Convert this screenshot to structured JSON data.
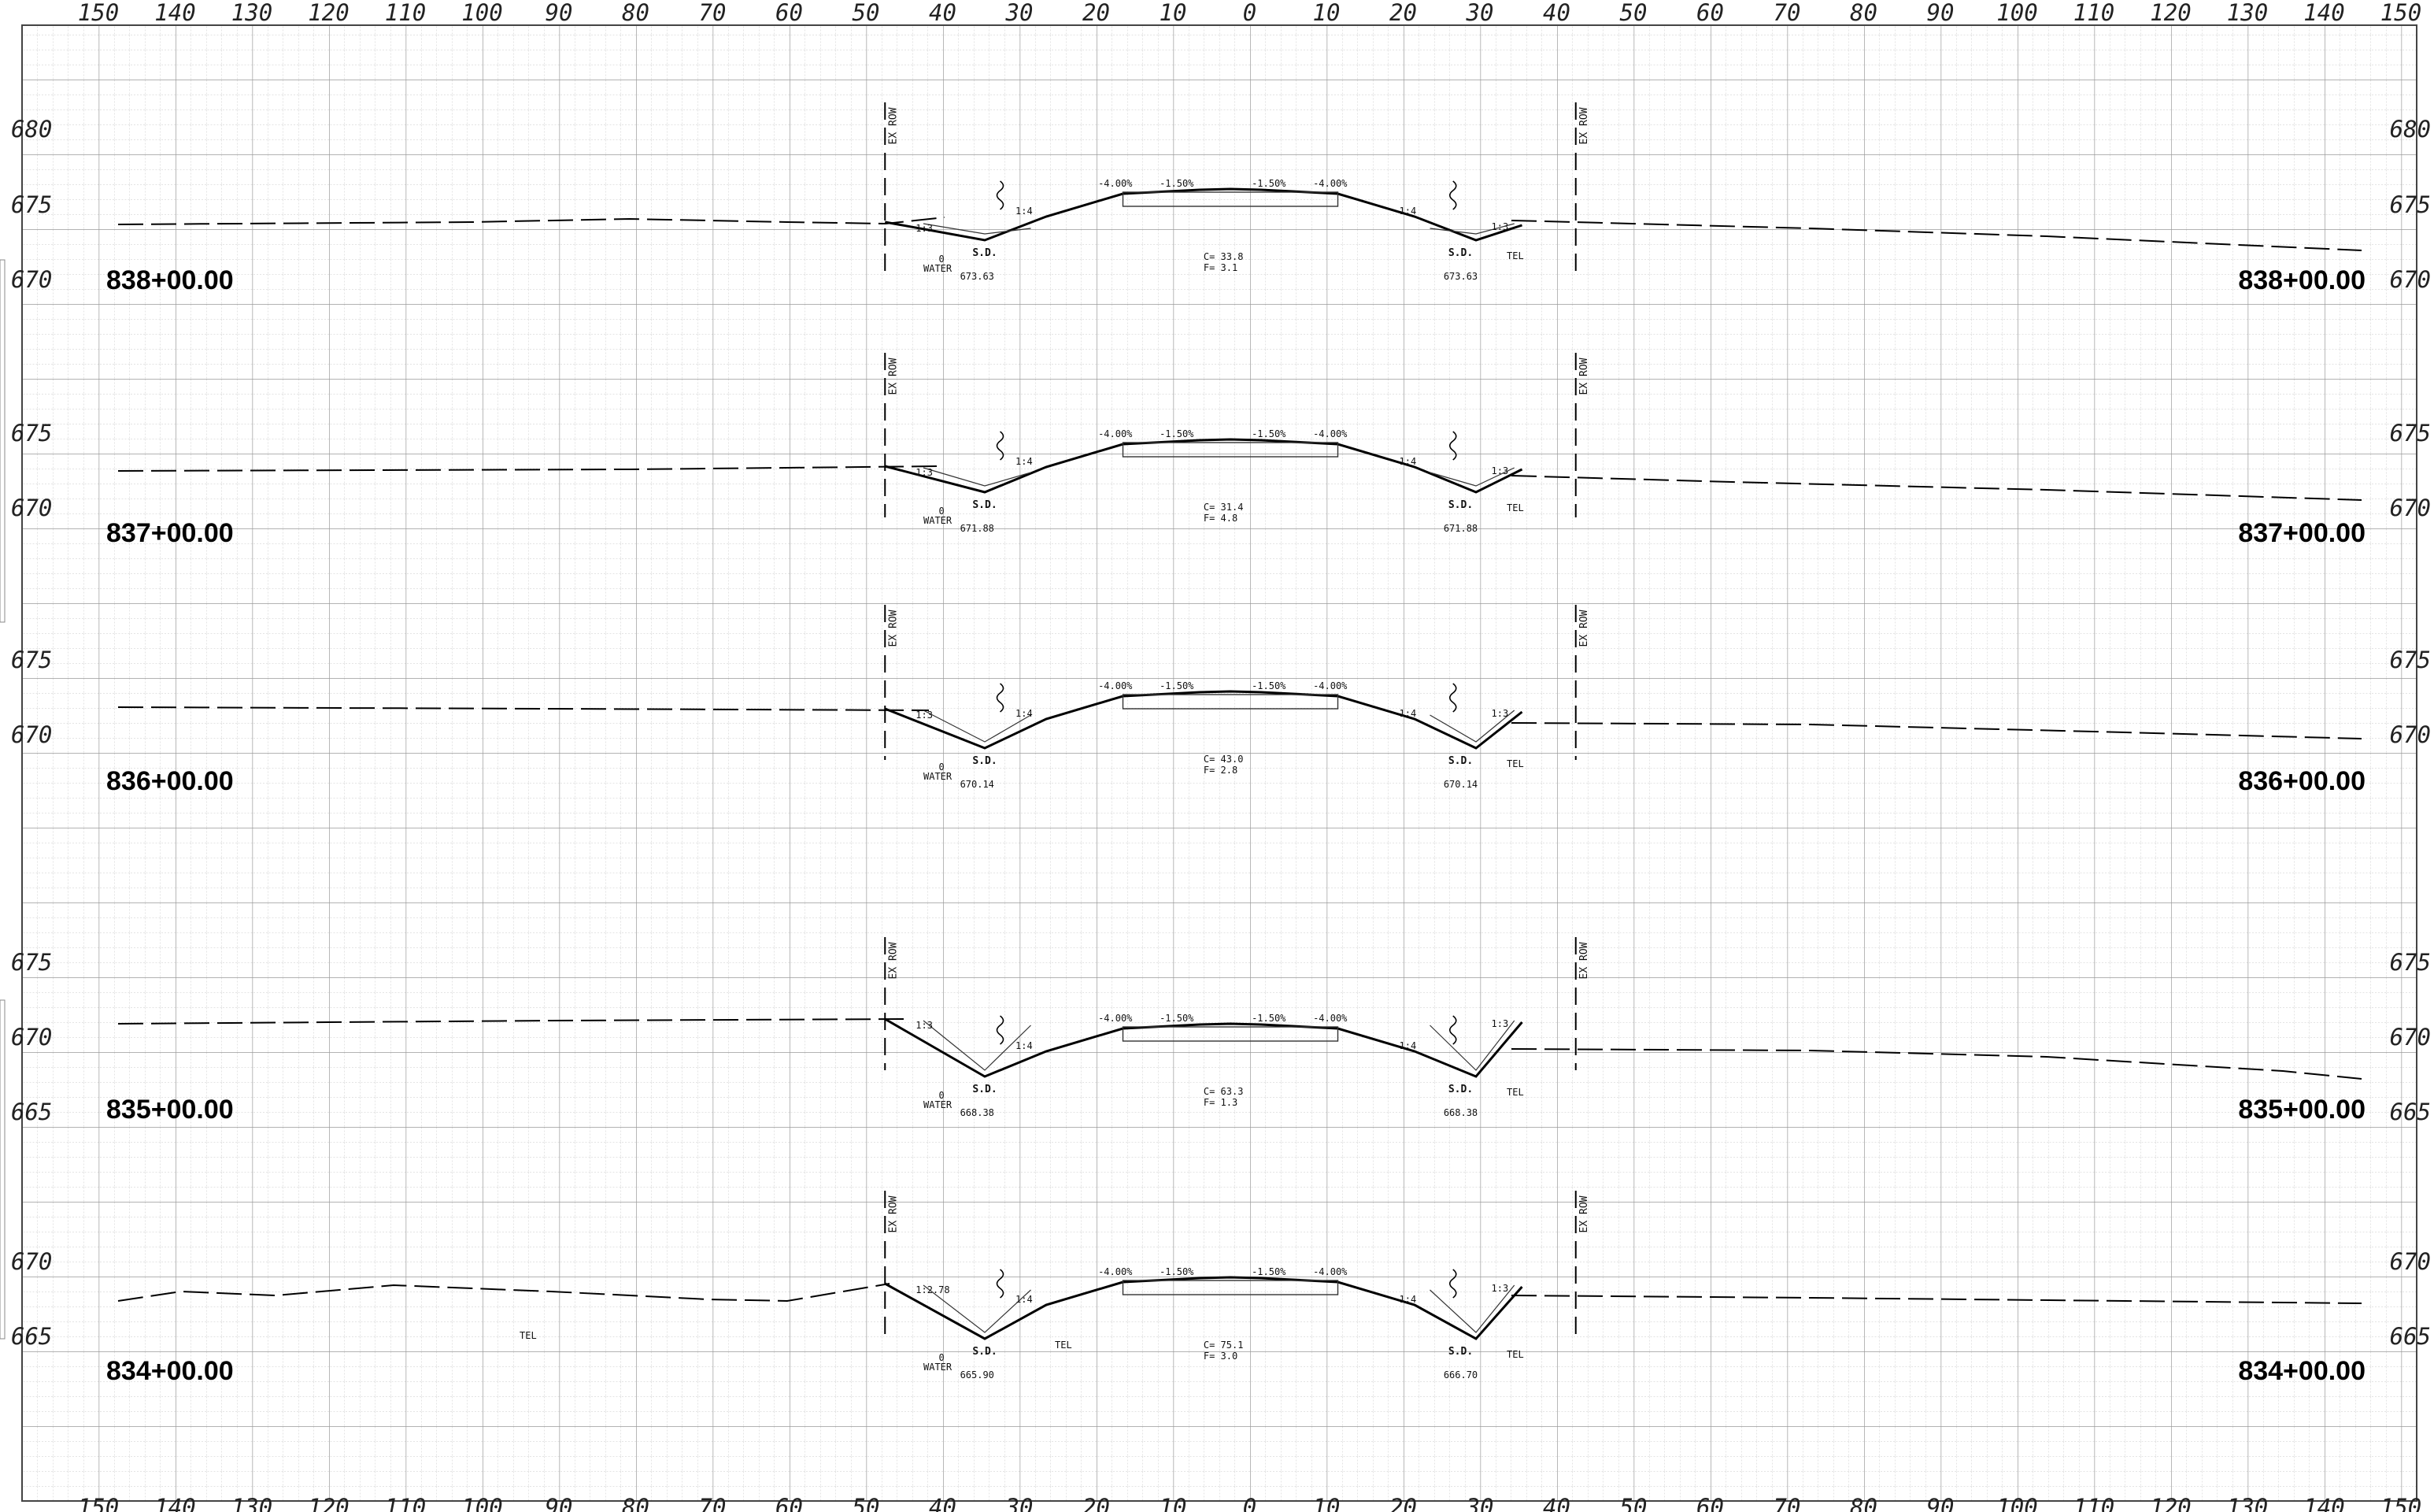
{
  "axis": {
    "offsets_top": [
      "150",
      "140",
      "130",
      "120",
      "110",
      "100",
      "90",
      "80",
      "70",
      "60",
      "50",
      "40",
      "30",
      "20",
      "10",
      "0",
      "10",
      "20",
      "30",
      "40",
      "50",
      "60",
      "70",
      "80",
      "90",
      "100",
      "110",
      "120",
      "130",
      "140",
      "150"
    ],
    "offsets_bottom": [
      "150",
      "140",
      "130",
      "120",
      "110",
      "100",
      "90",
      "80",
      "70",
      "60",
      "50",
      "40",
      "30",
      "20",
      "10",
      "0",
      "10",
      "20",
      "30",
      "40",
      "50",
      "60",
      "70",
      "80",
      "90",
      "100",
      "110",
      "120",
      "130",
      "140",
      "150"
    ]
  },
  "labels": {
    "row": "EX ROW",
    "ditch": "S.D.",
    "tel": "TEL",
    "water": "WATER",
    "water_zero": "0",
    "slope_out": "1:3",
    "slope_in": "1:4",
    "grades": [
      "-4.00%",
      "-1.50%",
      "-1.50%",
      "-4.00%"
    ]
  },
  "sections": [
    {
      "station": "838+00.00",
      "elev": [
        "680",
        "675",
        "670"
      ],
      "elev_right": [
        "680",
        "675",
        "670"
      ],
      "cut": "C= 33.8",
      "fill": "F= 3.1",
      "flow_left": "673.63",
      "flow_right": "673.63"
    },
    {
      "station": "837+00.00",
      "elev": [
        "675",
        "670"
      ],
      "elev_right": [
        "675",
        "670"
      ],
      "cut": "C= 31.4",
      "fill": "F= 4.8",
      "flow_left": "671.88",
      "flow_right": "671.88"
    },
    {
      "station": "836+00.00",
      "elev": [
        "675",
        "670"
      ],
      "elev_right": [
        "675",
        "670"
      ],
      "cut": "C= 43.0",
      "fill": "F= 2.8",
      "flow_left": "670.14",
      "flow_right": "670.14"
    },
    {
      "station": "835+00.00",
      "elev": [
        "675",
        "670",
        "665"
      ],
      "elev_right": [
        "675",
        "670",
        "665"
      ],
      "cut": "C= 63.3",
      "fill": "F= 1.3",
      "flow_left": "668.38",
      "flow_right": "668.38"
    },
    {
      "station": "834+00.00",
      "elev": [
        "670",
        "665"
      ],
      "elev_right": [
        "670",
        "665"
      ],
      "cut": "C= 75.1",
      "fill": "F= 3.0",
      "flow_left": "665.90",
      "flow_right": "666.70",
      "slope_left": "1:2.78"
    }
  ]
}
